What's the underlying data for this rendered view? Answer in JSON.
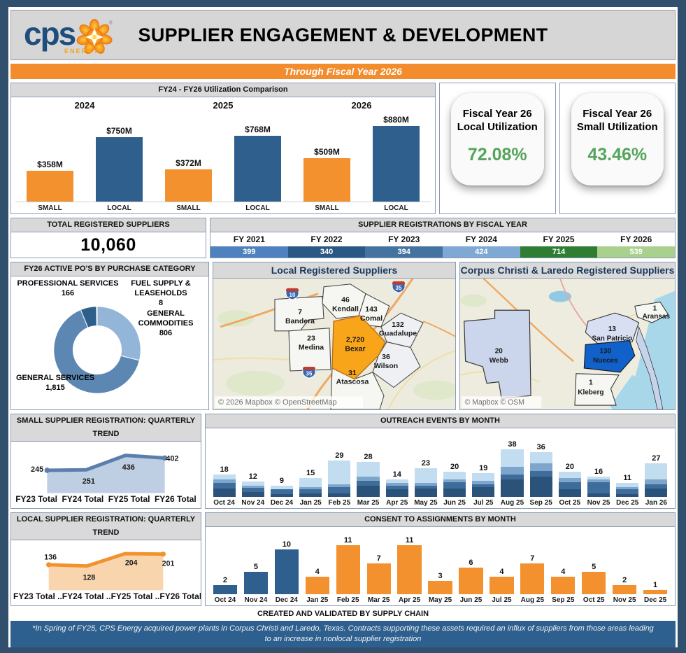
{
  "header": {
    "title": "SUPPLIER ENGAGEMENT & DEVELOPMENT",
    "logo_text": "cps",
    "logo_sub": "ENERGY",
    "logo_reg": "®"
  },
  "banner": {
    "text": "Through Fiscal Year 2026"
  },
  "kpis": [
    {
      "line1": "Fiscal Year 26",
      "line2": "Local Utilization",
      "value": "72.08%"
    },
    {
      "line1": "Fiscal Year 26",
      "line2": "Small Utilization",
      "value": "43.46%"
    }
  ],
  "totals": {
    "title": "TOTAL REGISTERED SUPPLIERS",
    "value": "10,060"
  },
  "maps": {
    "local": {
      "title": "Local Registered Suppliers",
      "attribution": "© 2026 Mapbox © OpenStreetMap",
      "highways": [
        "10",
        "35",
        "35"
      ],
      "counties": [
        {
          "name": "Kendall",
          "value": "46"
        },
        {
          "name": "Comal",
          "value": "143"
        },
        {
          "name": "Guadalupe",
          "value": "132"
        },
        {
          "name": "Bandera",
          "value": "7"
        },
        {
          "name": "Medina",
          "value": "23"
        },
        {
          "name": "Bexar",
          "value": "2,720"
        },
        {
          "name": "Wilson",
          "value": "36"
        },
        {
          "name": "Atascosa",
          "value": "31"
        }
      ]
    },
    "corpus": {
      "title": "Corpus Christi & Laredo Registered Suppliers",
      "attribution": "© Mapbox © OSM",
      "counties": [
        {
          "name": "Webb",
          "value": "20"
        },
        {
          "name": "San Patricio",
          "value": "13"
        },
        {
          "name": "Nueces",
          "value": "130"
        },
        {
          "name": "Kleberg",
          "value": "1"
        },
        {
          "name": "Aransas",
          "value": "1"
        }
      ]
    }
  },
  "footer": {
    "created": "CREATED AND VALIDATED BY SUPPLY CHAIN",
    "footnote": "*In Spring of FY25, CPS Energy acquired power plants in Corpus Christi and Laredo, Texas. Contracts supporting these assets required an influx of suppliers from those areas leading to an increase in nonlocal supplier registration"
  },
  "colors": {
    "accent_orange": "#F2912D",
    "bar_blue": "#2F5F8C",
    "kpi_green": "#55A45B",
    "footnote_bg": "#2E608F",
    "bexar_orange": "#F9A51A",
    "nueces_blue": "#1061C9"
  },
  "chart_data": [
    {
      "id": "utilization",
      "type": "bar",
      "title": "FY24 - FY26 Utilization Comparison",
      "groups": [
        "2024",
        "2025",
        "2026"
      ],
      "categories": [
        "SMALL",
        "LOCAL",
        "SMALL",
        "LOCAL",
        "SMALL",
        "LOCAL"
      ],
      "values": [
        358,
        750,
        372,
        768,
        509,
        880
      ],
      "labels": [
        "$358M",
        "$750M",
        "$372M",
        "$768M",
        "$509M",
        "$880M"
      ],
      "colors": [
        "#F2912D",
        "#2F5F8C",
        "#F2912D",
        "#2F5F8C",
        "#F2912D",
        "#2F5F8C"
      ],
      "ylim": [
        0,
        880
      ]
    },
    {
      "id": "registrations",
      "type": "bar",
      "title": "SUPPLIER REGISTRATIONS BY FISCAL YEAR",
      "categories": [
        "FY 2021",
        "FY 2022",
        "FY 2023",
        "FY 2024",
        "FY 2025",
        "FY 2026"
      ],
      "values": [
        399,
        340,
        394,
        424,
        714,
        539
      ],
      "colors": [
        "#4E81BD",
        "#2A5783",
        "#44739F",
        "#7FA8D4",
        "#2E7D32",
        "#A9D08D"
      ]
    },
    {
      "id": "purchase_categories",
      "type": "pie",
      "title": "FY26 ACTIVE PO'S BY PURCHASE CATEGORY",
      "categories": [
        "PROFESSIONAL SERVICES",
        "FUEL SUPPLY & LEASEHOLDS",
        "GENERAL COMMODITIES",
        "GENERAL SERVICES"
      ],
      "values": [
        166,
        8,
        806,
        1815
      ],
      "labels": [
        "166",
        "8",
        "806",
        "1,815"
      ],
      "colors": [
        "#2C5F8A",
        "#41759E",
        "#92B5D8",
        "#5C87B2"
      ],
      "draw_order": [
        2,
        3,
        0,
        1
      ]
    },
    {
      "id": "small_trend",
      "type": "area",
      "title": "SMALL SUPPLIER REGISTRATION: QUARTERLY TREND",
      "categories": [
        "FY23 Total",
        "FY24 Total",
        "FY25 Total",
        "FY26 Total"
      ],
      "values": [
        245,
        251,
        436,
        402
      ],
      "ymax": 450,
      "line_color": "#5B7FAC",
      "fill_color": "#BFCFE3",
      "label_positions": [
        [
          16,
          48
        ],
        [
          104,
          68
        ],
        [
          172,
          44
        ],
        [
          247,
          29
        ]
      ]
    },
    {
      "id": "outreach",
      "type": "stacked-bar",
      "title": "OUTREACH EVENTS BY MONTH",
      "categories": [
        "Oct 24",
        "Nov 24",
        "Dec 24",
        "Jan 25",
        "Feb 25",
        "Mar 25",
        "Apr 25",
        "May 25",
        "Jun 25",
        "Jul 25",
        "Aug 25",
        "Sep 25",
        "Oct 25",
        "Nov 25",
        "Dec 25",
        "Jan 26"
      ],
      "values": [
        18,
        12,
        9,
        15,
        29,
        28,
        14,
        23,
        20,
        19,
        38,
        36,
        20,
        16,
        11,
        27
      ],
      "stacks": [
        [
          7,
          4,
          3,
          4
        ],
        [
          4,
          3,
          2,
          3
        ],
        [
          2,
          4,
          0,
          3
        ],
        [
          3,
          3,
          2,
          7
        ],
        [
          3,
          5,
          2,
          19
        ],
        [
          9,
          4,
          3,
          12
        ],
        [
          6,
          3,
          2,
          3
        ],
        [
          7,
          2,
          2,
          12
        ],
        [
          7,
          5,
          2,
          6
        ],
        [
          8,
          2,
          3,
          6
        ],
        [
          14,
          4,
          6,
          14
        ],
        [
          16,
          5,
          6,
          9
        ],
        [
          6,
          6,
          3,
          5
        ],
        [
          3,
          9,
          2,
          2
        ],
        [
          2,
          4,
          2,
          3
        ],
        [
          7,
          3,
          4,
          13
        ]
      ],
      "stack_colors": [
        "#2B5379",
        "#3E6D9C",
        "#7EA6CC",
        "#C2DCF0"
      ],
      "ymax": 38
    },
    {
      "id": "local_trend",
      "type": "area",
      "title": "LOCAL SUPPLIER REGISTRATION: QUARTERLY TREND",
      "categories": [
        "FY23 Total ..",
        "FY24 Total ..",
        "FY25 Total ..",
        "FY26 Total .."
      ],
      "values": [
        136,
        128,
        204,
        201
      ],
      "ymax": 210,
      "line_color": "#F2912D",
      "fill_color": "#F8D5AC",
      "label_positions": [
        [
          36,
          30
        ],
        [
          104,
          66
        ],
        [
          178,
          40
        ],
        [
          243,
          41
        ]
      ]
    },
    {
      "id": "consent",
      "type": "bar",
      "title": "CONSENT TO ASSIGNMENTS BY MONTH",
      "categories": [
        "Oct 24",
        "Nov 24",
        "Dec 24",
        "Jan 25",
        "Feb 25",
        "Mar 25",
        "Apr 25",
        "May 25",
        "Jun 25",
        "Jul 25",
        "Aug 25",
        "Sep 25",
        "Oct 25",
        "Nov 25",
        "Dec 25"
      ],
      "values": [
        2,
        5,
        10,
        4,
        11,
        7,
        11,
        3,
        6,
        4,
        7,
        4,
        5,
        2,
        1
      ],
      "colors": [
        "#2E5F8F",
        "#2E5F8F",
        "#2E5F8F",
        "#F2912D",
        "#F2912D",
        "#F2912D",
        "#F2912D",
        "#F2912D",
        "#F2912D",
        "#F2912D",
        "#F2912D",
        "#F2912D",
        "#F2912D",
        "#F2912D",
        "#F2912D"
      ],
      "ymax": 11
    }
  ]
}
